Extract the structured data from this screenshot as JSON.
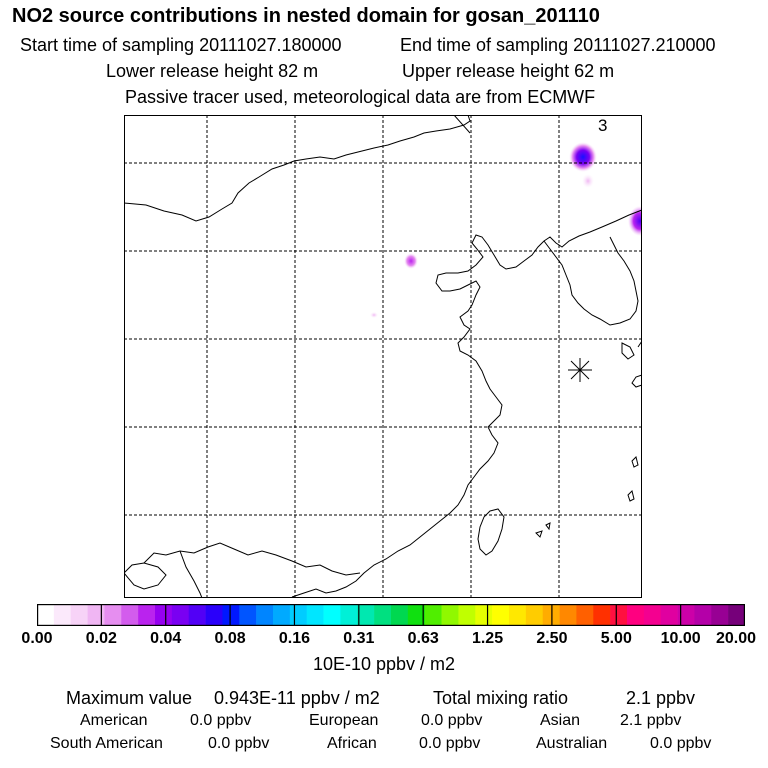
{
  "header": {
    "title": "NO2 source contributions in nested domain for gosan_201110",
    "start_label": "Start time of sampling 20111027.180000",
    "end_label": "End time of sampling 20111027.210000",
    "lower_label": "Lower release height   82 m",
    "upper_label": "Upper release height   62 m",
    "tracer_label": "Passive tracer used, meteorological data are from ECMWF"
  },
  "map": {
    "corner_label": "3",
    "receptor_marker": "asterisk-icon",
    "land_line_color": "#000000",
    "grid_line_style": "dashed"
  },
  "colorbar": {
    "unit": "10E-10 ppbv / m2",
    "ticks": [
      "0.00",
      "0.02",
      "0.04",
      "0.08",
      "0.16",
      "0.31",
      "0.63",
      "1.25",
      "2.50",
      "5.00",
      "10.00",
      "20.00"
    ],
    "colors": [
      "#ffffff",
      "#fbe9fb",
      "#f7d3f7",
      "#f0b6f3",
      "#e68ef0",
      "#d35ced",
      "#ba23ee",
      "#9600f0",
      "#7a00f2",
      "#5200f6",
      "#2a00fa",
      "#0018ff",
      "#0055ff",
      "#0085ff",
      "#00aaff",
      "#00ccff",
      "#00e6ff",
      "#00ffff",
      "#00f0d7",
      "#00e8b0",
      "#00e080",
      "#00d850",
      "#10e010",
      "#50ee00",
      "#90f800",
      "#c0ff00",
      "#e6ff00",
      "#ffff00",
      "#ffe800",
      "#ffcc00",
      "#ffac00",
      "#ff8800",
      "#ff6000",
      "#ff3000",
      "#ff1040",
      "#ff0080",
      "#f40090",
      "#e000a0",
      "#cc00a8",
      "#b400a8",
      "#980094",
      "#76007a"
    ]
  },
  "summary": {
    "max_label": "Maximum value",
    "max_value": "0.943E-11 ppbv / m2",
    "total_label": "Total mixing ratio",
    "total_value": "2.1 ppbv",
    "regions": [
      {
        "name": "American",
        "value": "0.0 ppbv"
      },
      {
        "name": "European",
        "value": "0.0 ppbv"
      },
      {
        "name": "Asian",
        "value": "2.1 ppbv"
      },
      {
        "name": "South American",
        "value": "0.0 ppbv"
      },
      {
        "name": "African",
        "value": "0.0 ppbv"
      },
      {
        "name": "Australian",
        "value": "0.0 ppbv"
      }
    ]
  }
}
